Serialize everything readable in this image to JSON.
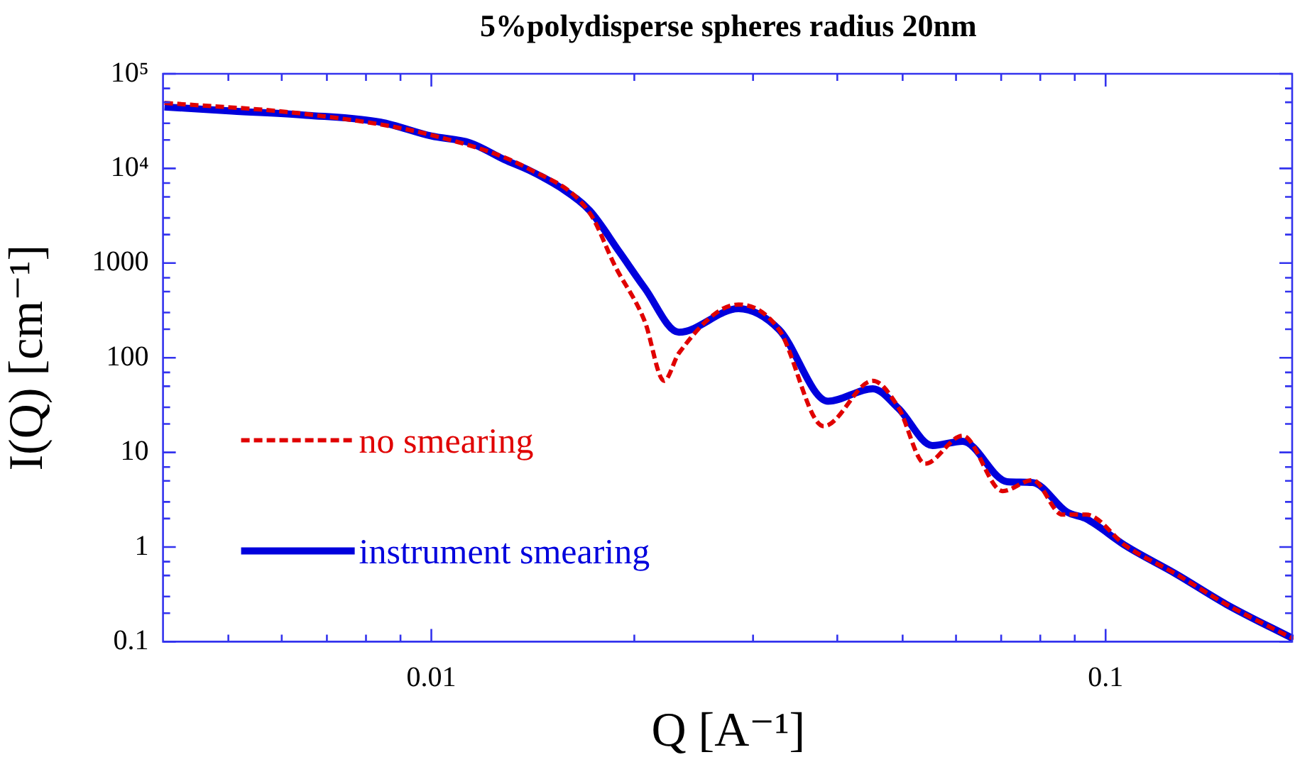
{
  "chart_data": {
    "type": "line",
    "title": "5%polydisperse spheres radius 20nm",
    "xlabel": "Q [A⁻¹]",
    "ylabel": "I(Q) [cm⁻¹]",
    "log": "xy",
    "grid": false,
    "legend": "bottom left",
    "marker": "none",
    "xlim": [
      0.004,
      0.19
    ],
    "ylim": [
      0.1,
      100000
    ],
    "xticks": [
      {
        "value": 0.005,
        "label": null
      },
      {
        "value": 0.006,
        "label": null
      },
      {
        "value": 0.007,
        "label": null
      },
      {
        "value": 0.008,
        "label": null
      },
      {
        "value": 0.009,
        "label": null
      },
      0.01,
      {
        "value": 0.02,
        "label": null
      },
      {
        "value": 0.03,
        "label": null
      },
      {
        "value": 0.04,
        "label": null
      },
      {
        "value": 0.05,
        "label": null
      },
      {
        "value": 0.06,
        "label": null
      },
      {
        "value": 0.07,
        "label": null
      },
      {
        "value": 0.08,
        "label": null
      },
      {
        "value": 0.09,
        "label": null
      },
      0.1
    ],
    "yticks": [
      0.1,
      {
        "value": 0.2,
        "label": null
      },
      {
        "value": 0.3,
        "label": null
      },
      {
        "value": 0.5,
        "label": null
      },
      {
        "value": 0.7,
        "label": null
      },
      1,
      {
        "value": 2,
        "label": null
      },
      {
        "value": 3,
        "label": null
      },
      {
        "value": 5,
        "label": null
      },
      {
        "value": 7,
        "label": null
      },
      10,
      {
        "value": 20,
        "label": null
      },
      {
        "value": 30,
        "label": null
      },
      {
        "value": 50,
        "label": null
      },
      {
        "value": 70,
        "label": null
      },
      100,
      {
        "value": 200,
        "label": null
      },
      {
        "value": 300,
        "label": null
      },
      {
        "value": 500,
        "label": null
      },
      {
        "value": 700,
        "label": null
      },
      1000,
      {
        "value": 2000,
        "label": null
      },
      {
        "value": 3000,
        "label": null
      },
      {
        "value": 5000,
        "label": null
      },
      {
        "value": 7000,
        "label": null
      },
      {
        "value": 10000,
        "label": "10⁴"
      },
      {
        "value": 20000,
        "label": null
      },
      {
        "value": 30000,
        "label": null
      },
      {
        "value": 50000,
        "label": null
      },
      {
        "value": 70000,
        "label": null
      },
      {
        "value": 100000,
        "label": "10⁵"
      }
    ],
    "series": [
      {
        "name": "no smearing",
        "color": "#e00000",
        "line_style": "dashed",
        "x": [
          0.00402,
          0.00652,
          0.01,
          0.01399,
          0.01717,
          0.01872,
          0.02072,
          0.02214,
          0.02329,
          0.02855,
          0.03277,
          0.03818,
          0.04515,
          0.04926,
          0.05398,
          0.06135,
          0.07035,
          0.07792,
          0.0863,
          0.09355,
          0.1073,
          0.1271,
          0.151,
          0.19
        ],
        "values": [
          49300,
          37500,
          22500,
          9800,
          3400,
          935,
          244,
          57,
          112,
          365,
          199,
          18.9,
          57,
          30,
          7.6,
          15,
          3.9,
          5.1,
          2.2,
          2.2,
          1.02,
          0.52,
          0.248,
          0.107
        ]
      },
      {
        "name": "instrument smearing",
        "color": "#0000dd",
        "line_style": "solid",
        "x": [
          0.00402,
          0.00506,
          0.00652,
          0.00841,
          0.01,
          0.01142,
          0.01283,
          0.01399,
          0.0155,
          0.01717,
          0.01901,
          0.02072,
          0.02329,
          0.02855,
          0.03277,
          0.03875,
          0.04515,
          0.04926,
          0.05537,
          0.06135,
          0.07145,
          0.07792,
          0.0876,
          0.09355,
          0.1073,
          0.1271,
          0.151,
          0.19
        ],
        "values": [
          44700,
          40400,
          36500,
          30800,
          22000,
          18600,
          12400,
          9500,
          6350,
          3590,
          1310,
          546,
          186,
          330,
          199,
          34.7,
          47,
          29.3,
          11.8,
          13.1,
          4.9,
          4.8,
          2.35,
          1.99,
          1.02,
          0.52,
          0.248,
          0.107
        ]
      }
    ]
  }
}
